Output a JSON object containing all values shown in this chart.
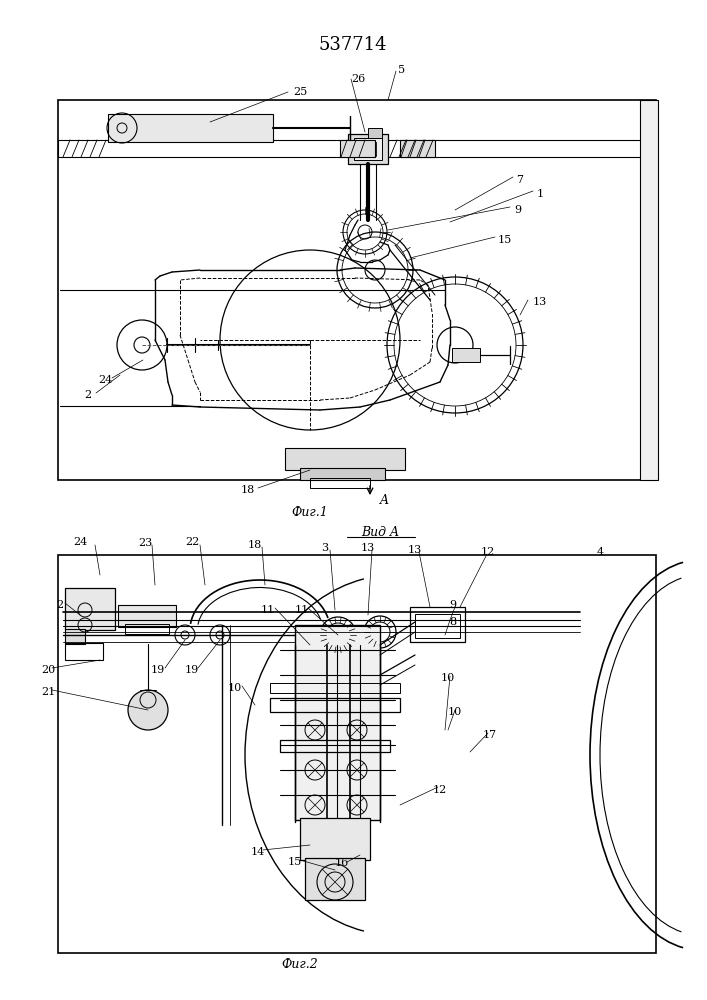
{
  "title": "537714",
  "fig1_caption": "Фиг.1",
  "fig2_caption": "Фиг.2",
  "fig2_title": "Вид A",
  "bg_color": "#ffffff"
}
